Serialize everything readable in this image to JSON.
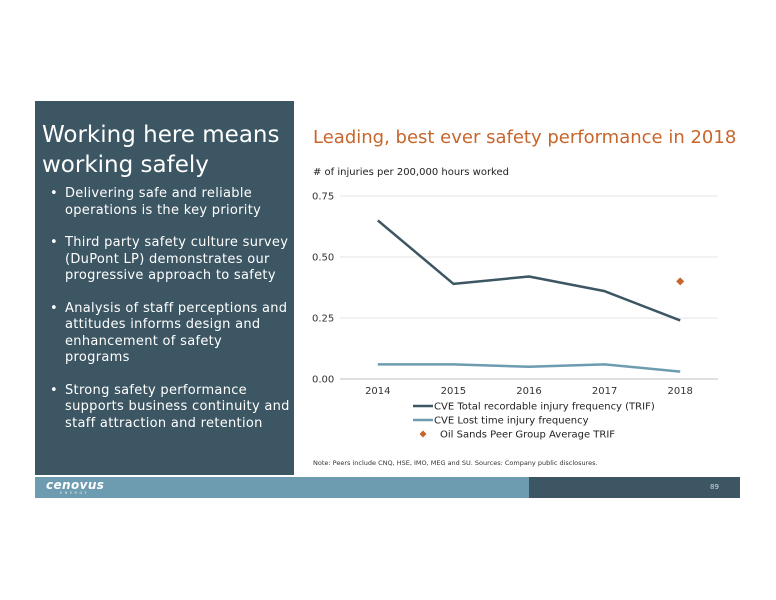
{
  "slide": {
    "left": {
      "title": "Working here means working safely",
      "bullets": [
        "Delivering safe and reliable operations is the key priority",
        "Third party safety culture survey (DuPont LP) demonstrates our progressive approach to safety",
        "Analysis of staff perceptions and attitudes informs design and enhancement of safety programs",
        "Strong safety performance supports business continuity and staff attraction and retention"
      ],
      "bullet_glyph": "•"
    },
    "chart_title": "Leading, best ever safety performance in 2018",
    "y_units": "# of injuries per 200,000 hours worked",
    "note": "Note: Peers include CNQ, HSE, IMO, MEG and SU. Sources: Company public disclosures.",
    "footer": {
      "logo": "cenovus",
      "logo_sub": "ENERGY",
      "page": "89"
    },
    "colors": {
      "panel": "#3d5663",
      "accent": "#c8652b",
      "footer_light": "#6d9cb1"
    }
  },
  "chart_data": {
    "type": "line",
    "categories": [
      "2014",
      "2015",
      "2016",
      "2017",
      "2018"
    ],
    "yticks": [
      "0.00",
      "0.25",
      "0.50",
      "0.75"
    ],
    "ylim": [
      0,
      0.75
    ],
    "grid": true,
    "legend_position": "bottom",
    "series": [
      {
        "name": "CVE Total recordable injury frequency (TRIF)",
        "values": [
          0.65,
          0.39,
          0.42,
          0.36,
          0.24
        ],
        "color": "#3d5663",
        "style": "line"
      },
      {
        "name": "CVE Lost time injury frequency",
        "values": [
          0.06,
          0.06,
          0.05,
          0.06,
          0.03
        ],
        "color": "#6d9cb1",
        "style": "line"
      },
      {
        "name": "Oil Sands Peer Group Average TRIF",
        "values": [
          null,
          null,
          null,
          null,
          0.4
        ],
        "color": "#c8652b",
        "style": "diamond"
      }
    ]
  }
}
